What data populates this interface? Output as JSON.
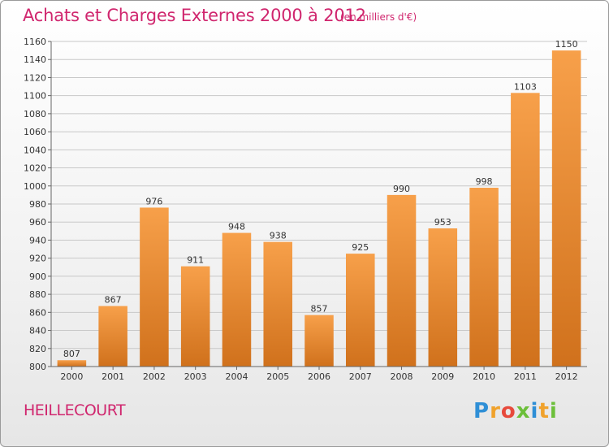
{
  "header": {
    "title": "Achats et Charges Externes 2000 à 2012",
    "subtitle": "(en milliers d'€)"
  },
  "footer": {
    "commune": "HEILLECOURT",
    "logo_letters": [
      "P",
      "r",
      "o",
      "x",
      "i",
      "t",
      "i"
    ]
  },
  "colors": {
    "bar_top": "#f7a04a",
    "bar_bottom": "#d0711c",
    "grid": "#c8c8c8",
    "text_accent": "#d0266e"
  },
  "chart_data": {
    "type": "bar",
    "title": "Achats et Charges Externes 2000 à 2012",
    "subtitle": "(en milliers d'€)",
    "categories": [
      "2000",
      "2001",
      "2002",
      "2003",
      "2004",
      "2005",
      "2006",
      "2007",
      "2008",
      "2009",
      "2010",
      "2011",
      "2012"
    ],
    "values": [
      807,
      867,
      976,
      911,
      948,
      938,
      857,
      925,
      990,
      953,
      998,
      1103,
      1150
    ],
    "ylim": [
      800,
      1160
    ],
    "yticks": [
      800,
      820,
      840,
      860,
      880,
      900,
      920,
      940,
      960,
      980,
      1000,
      1020,
      1040,
      1060,
      1080,
      1100,
      1120,
      1140,
      1160
    ],
    "grid": true,
    "data_labels": true
  }
}
